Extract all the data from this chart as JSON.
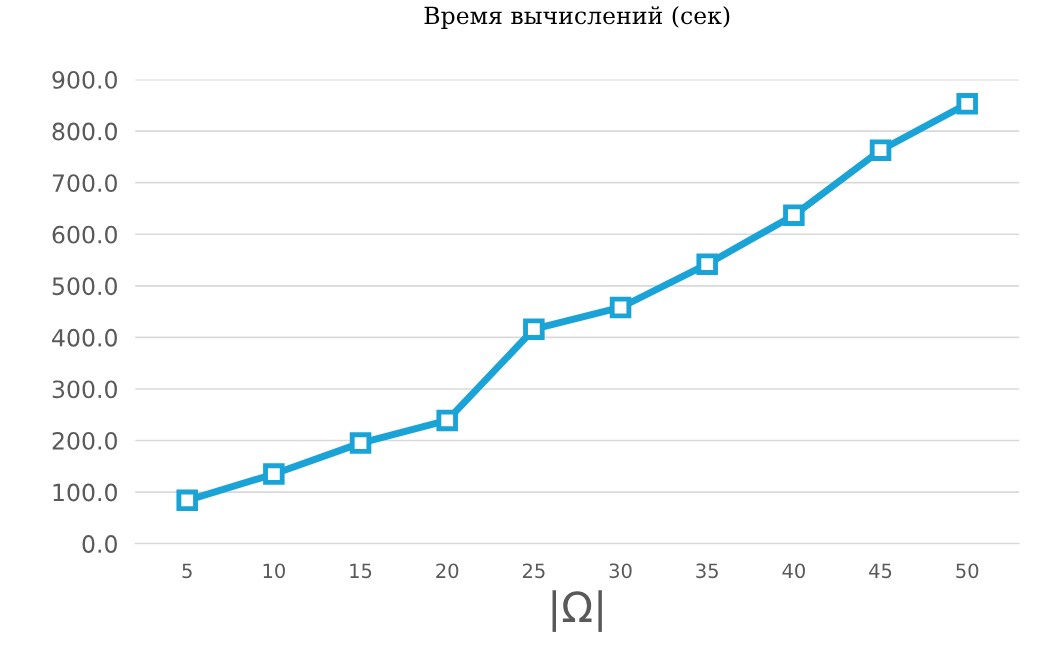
{
  "chart_data": {
    "type": "line",
    "title": "Время вычислений (сек)",
    "xlabel": "|Ω|",
    "categories": [
      "5",
      "10",
      "15",
      "20",
      "25",
      "30",
      "35",
      "40",
      "45",
      "50"
    ],
    "series": [
      {
        "color": "#1aa3d6",
        "values": [
          84,
          135,
          195,
          239,
          416,
          458,
          542,
          637,
          763,
          853
        ]
      }
    ],
    "ylim": [
      0,
      900
    ],
    "yticks": [
      {
        "value": 0,
        "label": "0.0"
      },
      {
        "value": 100,
        "label": "100.0"
      },
      {
        "value": 200,
        "label": "200.0"
      },
      {
        "value": 300,
        "label": "300.0"
      },
      {
        "value": 400,
        "label": "400.0"
      },
      {
        "value": 500,
        "label": "500.0"
      },
      {
        "value": 600,
        "label": "600.0"
      },
      {
        "value": 700,
        "label": "700.0"
      },
      {
        "value": 800,
        "label": "800.0"
      },
      {
        "value": 900,
        "label": "900.0"
      }
    ],
    "grid": "y",
    "marker": "square",
    "line_style": "solid"
  }
}
